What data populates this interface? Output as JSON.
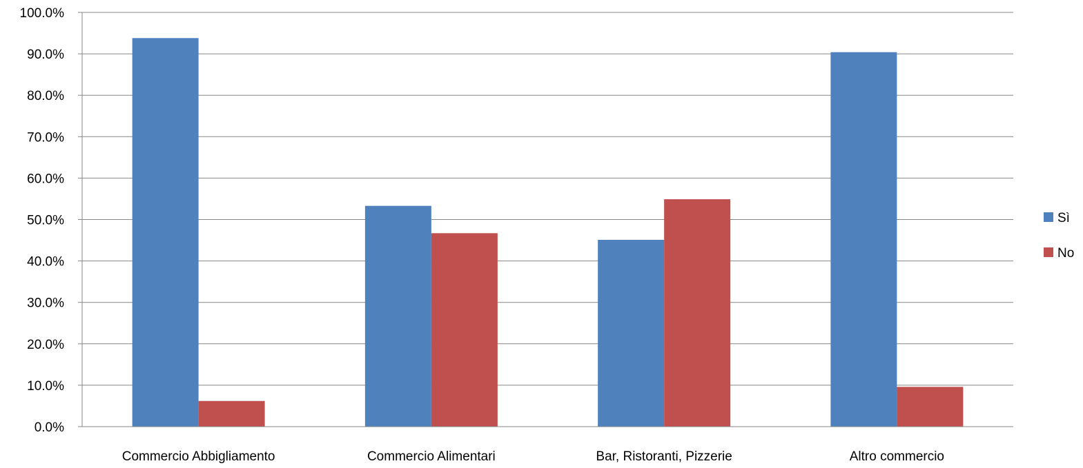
{
  "chart_data": {
    "type": "bar",
    "title": "",
    "xlabel": "",
    "ylabel": "",
    "categories": [
      "Commercio Abbigliamento",
      "Commercio Alimentari",
      "Bar, Ristoranti, Pizzerie",
      "Altro commercio"
    ],
    "series": [
      {
        "name": "Sì",
        "color": "#4F81BD",
        "values": [
          93.8,
          53.3,
          45.1,
          90.4
        ]
      },
      {
        "name": "No",
        "color": "#C0504D",
        "values": [
          6.2,
          46.7,
          54.9,
          9.6
        ]
      }
    ],
    "ylim": [
      0,
      100
    ],
    "y_ticks": [
      "0.0%",
      "10.0%",
      "20.0%",
      "30.0%",
      "40.0%",
      "50.0%",
      "60.0%",
      "70.0%",
      "80.0%",
      "90.0%",
      "100.0%"
    ],
    "grid": true,
    "legend_position": "right"
  }
}
